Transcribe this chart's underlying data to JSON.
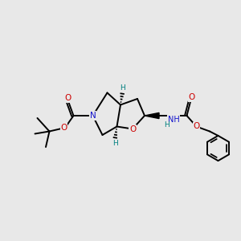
{
  "bg_color": "#e8e8e8",
  "atom_colors": {
    "N": "#1010cc",
    "O": "#cc0000",
    "C": "#000000",
    "H": "#008080"
  },
  "bond_color": "#000000",
  "line_width": 1.4,
  "figsize": [
    3.0,
    3.0
  ],
  "dpi": 100
}
